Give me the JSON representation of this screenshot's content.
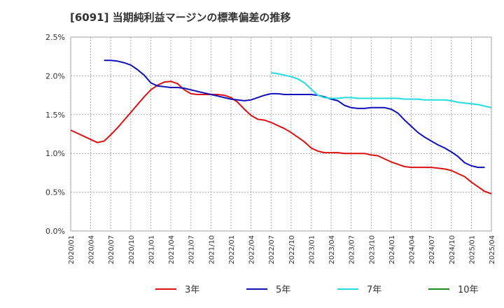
{
  "title": "[6091]  当期純利益マージンの標準偏差の推移",
  "chart_data": {
    "type": "line",
    "title": "[6091]  当期純利益マージンの標準偏差の推移",
    "ylim": [
      0,
      0.025
    ],
    "y_ticks": [
      0,
      0.005,
      0.01,
      0.015,
      0.02,
      0.025
    ],
    "y_tick_labels": [
      "0.0%",
      "0.5%",
      "1.0%",
      "1.5%",
      "2.0%",
      "2.5%"
    ],
    "x_ticks": [
      "2020/01",
      "2020/04",
      "2020/07",
      "2020/10",
      "2021/01",
      "2021/04",
      "2021/07",
      "2021/10",
      "2022/01",
      "2022/04",
      "2022/07",
      "2022/10",
      "2023/01",
      "2023/04",
      "2023/07",
      "2023/10",
      "2024/01",
      "2024/04",
      "2024/07",
      "2024/10",
      "2025/01",
      "2025/04"
    ],
    "grid": true,
    "legend_position": "bottom",
    "series": [
      {
        "name": "3年",
        "color": "#dd1111",
        "points": [
          [
            "2020/01",
            0.013
          ],
          [
            "2020/02",
            0.0126
          ],
          [
            "2020/03",
            0.0122
          ],
          [
            "2020/04",
            0.0118
          ],
          [
            "2020/05",
            0.0114
          ],
          [
            "2020/06",
            0.0116
          ],
          [
            "2020/07",
            0.0124
          ],
          [
            "2020/08",
            0.0133
          ],
          [
            "2020/09",
            0.0143
          ],
          [
            "2020/10",
            0.0153
          ],
          [
            "2020/11",
            0.0163
          ],
          [
            "2020/12",
            0.0173
          ],
          [
            "2021/01",
            0.0182
          ],
          [
            "2021/02",
            0.0188
          ],
          [
            "2021/03",
            0.0192
          ],
          [
            "2021/04",
            0.0193
          ],
          [
            "2021/05",
            0.019
          ],
          [
            "2021/06",
            0.0182
          ],
          [
            "2021/07",
            0.0177
          ],
          [
            "2021/08",
            0.0176
          ],
          [
            "2021/09",
            0.0176
          ],
          [
            "2021/10",
            0.0176
          ],
          [
            "2021/11",
            0.0176
          ],
          [
            "2021/12",
            0.0175
          ],
          [
            "2022/01",
            0.0172
          ],
          [
            "2022/02",
            0.0166
          ],
          [
            "2022/03",
            0.0157
          ],
          [
            "2022/04",
            0.0149
          ],
          [
            "2022/05",
            0.0144
          ],
          [
            "2022/06",
            0.0143
          ],
          [
            "2022/07",
            0.014
          ],
          [
            "2022/08",
            0.0136
          ],
          [
            "2022/09",
            0.0132
          ],
          [
            "2022/10",
            0.0127
          ],
          [
            "2022/11",
            0.0121
          ],
          [
            "2022/12",
            0.0115
          ],
          [
            "2023/01",
            0.0107
          ],
          [
            "2023/02",
            0.0103
          ],
          [
            "2023/03",
            0.0101
          ],
          [
            "2023/04",
            0.0101
          ],
          [
            "2023/05",
            0.0101
          ],
          [
            "2023/06",
            0.01
          ],
          [
            "2023/07",
            0.01
          ],
          [
            "2023/08",
            0.01
          ],
          [
            "2023/09",
            0.01
          ],
          [
            "2023/10",
            0.0098
          ],
          [
            "2023/11",
            0.0097
          ],
          [
            "2023/12",
            0.0093
          ],
          [
            "2024/01",
            0.0089
          ],
          [
            "2024/02",
            0.0086
          ],
          [
            "2024/03",
            0.0083
          ],
          [
            "2024/04",
            0.0082
          ],
          [
            "2024/05",
            0.0082
          ],
          [
            "2024/06",
            0.0082
          ],
          [
            "2024/07",
            0.0082
          ],
          [
            "2024/08",
            0.0081
          ],
          [
            "2024/09",
            0.008
          ],
          [
            "2024/10",
            0.0078
          ],
          [
            "2024/11",
            0.0074
          ],
          [
            "2024/12",
            0.007
          ],
          [
            "2025/01",
            0.0063
          ],
          [
            "2025/02",
            0.0057
          ],
          [
            "2025/03",
            0.0051
          ],
          [
            "2025/04",
            0.0048
          ]
        ]
      },
      {
        "name": "5年",
        "color": "#1111bb",
        "points": [
          [
            "2020/06",
            0.022
          ],
          [
            "2020/07",
            0.022
          ],
          [
            "2020/08",
            0.0219
          ],
          [
            "2020/09",
            0.0217
          ],
          [
            "2020/10",
            0.0214
          ],
          [
            "2020/11",
            0.0208
          ],
          [
            "2020/12",
            0.0201
          ],
          [
            "2021/01",
            0.0191
          ],
          [
            "2021/02",
            0.0187
          ],
          [
            "2021/03",
            0.0186
          ],
          [
            "2021/04",
            0.0185
          ],
          [
            "2021/05",
            0.0185
          ],
          [
            "2021/06",
            0.0184
          ],
          [
            "2021/07",
            0.0182
          ],
          [
            "2021/08",
            0.018
          ],
          [
            "2021/09",
            0.0178
          ],
          [
            "2021/10",
            0.0176
          ],
          [
            "2021/11",
            0.0174
          ],
          [
            "2021/12",
            0.0172
          ],
          [
            "2022/01",
            0.017
          ],
          [
            "2022/02",
            0.0169
          ],
          [
            "2022/03",
            0.0168
          ],
          [
            "2022/04",
            0.0169
          ],
          [
            "2022/05",
            0.0172
          ],
          [
            "2022/06",
            0.0175
          ],
          [
            "2022/07",
            0.0177
          ],
          [
            "2022/08",
            0.0177
          ],
          [
            "2022/09",
            0.0176
          ],
          [
            "2022/10",
            0.0176
          ],
          [
            "2022/11",
            0.0176
          ],
          [
            "2022/12",
            0.0176
          ],
          [
            "2023/01",
            0.0176
          ],
          [
            "2023/02",
            0.0175
          ],
          [
            "2023/03",
            0.0173
          ],
          [
            "2023/04",
            0.017
          ],
          [
            "2023/05",
            0.0168
          ],
          [
            "2023/06",
            0.0162
          ],
          [
            "2023/07",
            0.0159
          ],
          [
            "2023/08",
            0.0158
          ],
          [
            "2023/09",
            0.0158
          ],
          [
            "2023/10",
            0.0159
          ],
          [
            "2023/11",
            0.0159
          ],
          [
            "2023/12",
            0.0159
          ],
          [
            "2024/01",
            0.0157
          ],
          [
            "2024/02",
            0.0152
          ],
          [
            "2024/03",
            0.0143
          ],
          [
            "2024/04",
            0.0135
          ],
          [
            "2024/05",
            0.0127
          ],
          [
            "2024/06",
            0.0121
          ],
          [
            "2024/07",
            0.0116
          ],
          [
            "2024/08",
            0.0111
          ],
          [
            "2024/09",
            0.0107
          ],
          [
            "2024/10",
            0.0102
          ],
          [
            "2024/11",
            0.0096
          ],
          [
            "2024/12",
            0.0088
          ],
          [
            "2025/01",
            0.0084
          ],
          [
            "2025/02",
            0.0082
          ],
          [
            "2025/03",
            0.0082
          ]
        ]
      },
      {
        "name": "7年",
        "color": "#22dddd",
        "points": [
          [
            "2022/07",
            0.0204
          ],
          [
            "2022/08",
            0.0203
          ],
          [
            "2022/09",
            0.0201
          ],
          [
            "2022/10",
            0.0199
          ],
          [
            "2022/11",
            0.0196
          ],
          [
            "2022/12",
            0.0191
          ],
          [
            "2023/01",
            0.0183
          ],
          [
            "2023/02",
            0.0175
          ],
          [
            "2023/03",
            0.0172
          ],
          [
            "2023/04",
            0.0171
          ],
          [
            "2023/05",
            0.0171
          ],
          [
            "2023/06",
            0.0172
          ],
          [
            "2023/07",
            0.0172
          ],
          [
            "2023/08",
            0.0171
          ],
          [
            "2023/09",
            0.0171
          ],
          [
            "2023/10",
            0.0171
          ],
          [
            "2023/11",
            0.0171
          ],
          [
            "2023/12",
            0.0171
          ],
          [
            "2024/01",
            0.0171
          ],
          [
            "2024/02",
            0.0171
          ],
          [
            "2024/03",
            0.017
          ],
          [
            "2024/04",
            0.017
          ],
          [
            "2024/05",
            0.017
          ],
          [
            "2024/06",
            0.0169
          ],
          [
            "2024/07",
            0.0169
          ],
          [
            "2024/08",
            0.0169
          ],
          [
            "2024/09",
            0.0169
          ],
          [
            "2024/10",
            0.0168
          ],
          [
            "2024/11",
            0.0166
          ],
          [
            "2024/12",
            0.0165
          ],
          [
            "2025/01",
            0.0164
          ],
          [
            "2025/02",
            0.0163
          ],
          [
            "2025/03",
            0.0161
          ],
          [
            "2025/04",
            0.0159
          ]
        ]
      },
      {
        "name": "10年",
        "color": "#228822",
        "points": []
      }
    ]
  }
}
